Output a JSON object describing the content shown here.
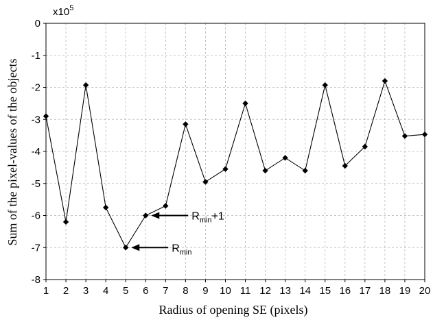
{
  "chart_data": {
    "type": "line",
    "xlabel": "Radius of opening SE (pixels)",
    "ylabel": "Sum of the pixel-values of the objects",
    "y_multiplier": {
      "base": "x10",
      "exponent": "5"
    },
    "xlim": [
      1,
      20
    ],
    "ylim": [
      -8,
      0
    ],
    "x_ticks": [
      "1",
      "2",
      "3",
      "4",
      "5",
      "6",
      "7",
      "8",
      "9",
      "10",
      "11",
      "12",
      "13",
      "14",
      "15",
      "16",
      "17",
      "18",
      "19",
      "20"
    ],
    "y_ticks": [
      "0",
      "-1",
      "-2",
      "-3",
      "-4",
      "-5",
      "-6",
      "-7",
      "-8"
    ],
    "grid": true,
    "grid_style": "dashed",
    "line_color": "#000000",
    "marker": "diamond",
    "x": [
      1,
      2,
      3,
      4,
      5,
      6,
      7,
      8,
      9,
      10,
      11,
      12,
      13,
      14,
      15,
      16,
      17,
      18,
      19,
      20
    ],
    "y": [
      -2.9,
      -6.2,
      -1.93,
      -5.75,
      -7.0,
      -6.0,
      -5.7,
      -3.15,
      -4.95,
      -4.55,
      -2.5,
      -4.6,
      -4.2,
      -4.6,
      -1.93,
      -4.45,
      -3.85,
      -1.8,
      -3.52,
      -3.47
    ],
    "annotations": [
      {
        "base": "R",
        "sub": "min",
        "suffix": "+1",
        "x": 6,
        "y": -6.0
      },
      {
        "base": "R",
        "sub": "min",
        "suffix": "",
        "x": 5,
        "y": -7.0
      }
    ]
  }
}
